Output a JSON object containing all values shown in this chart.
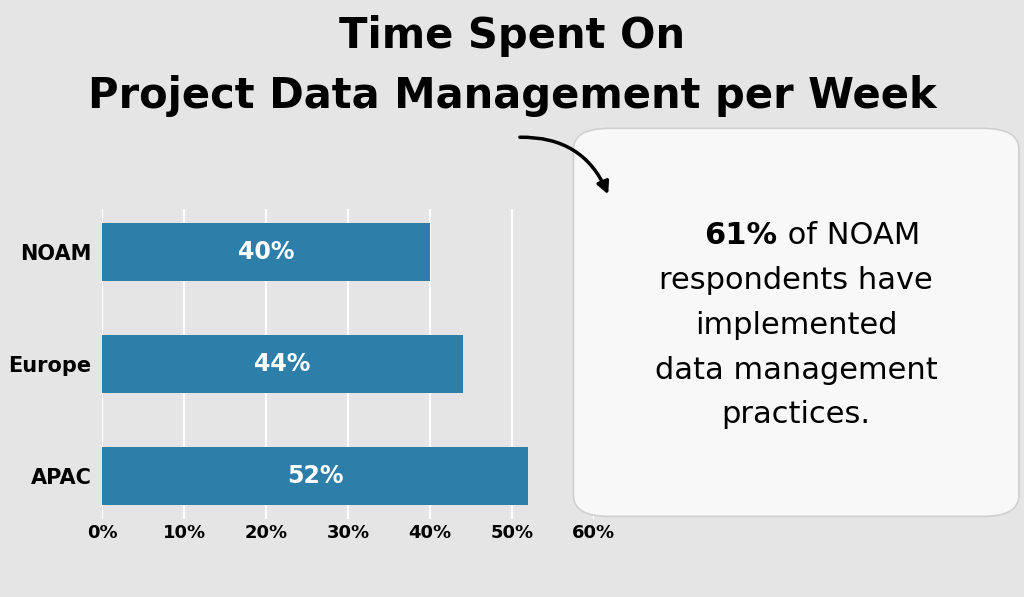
{
  "title_line1": "Time Spent On",
  "title_line2": "Project Data Management per Week",
  "categories": [
    "APAC",
    "Europe",
    "NOAM"
  ],
  "values": [
    52,
    44,
    40
  ],
  "bar_color": "#2e7eaa",
  "bar_labels": [
    "52%",
    "44%",
    "40%"
  ],
  "xlim": [
    0,
    60
  ],
  "xticks": [
    0,
    10,
    20,
    30,
    40,
    50,
    60
  ],
  "xtick_labels": [
    "0%",
    "10%",
    "20%",
    "30%",
    "40%",
    "50%",
    "60%"
  ],
  "background_color": "#e5e5e5",
  "annotation_bold": "61%",
  "annotation_box_color": "#f8f8f8",
  "annotation_box_edge": "#d0d0d0",
  "title_fontsize": 30,
  "label_fontsize": 15,
  "bar_label_fontsize": 17,
  "tick_fontsize": 13,
  "ann_fontsize": 22
}
